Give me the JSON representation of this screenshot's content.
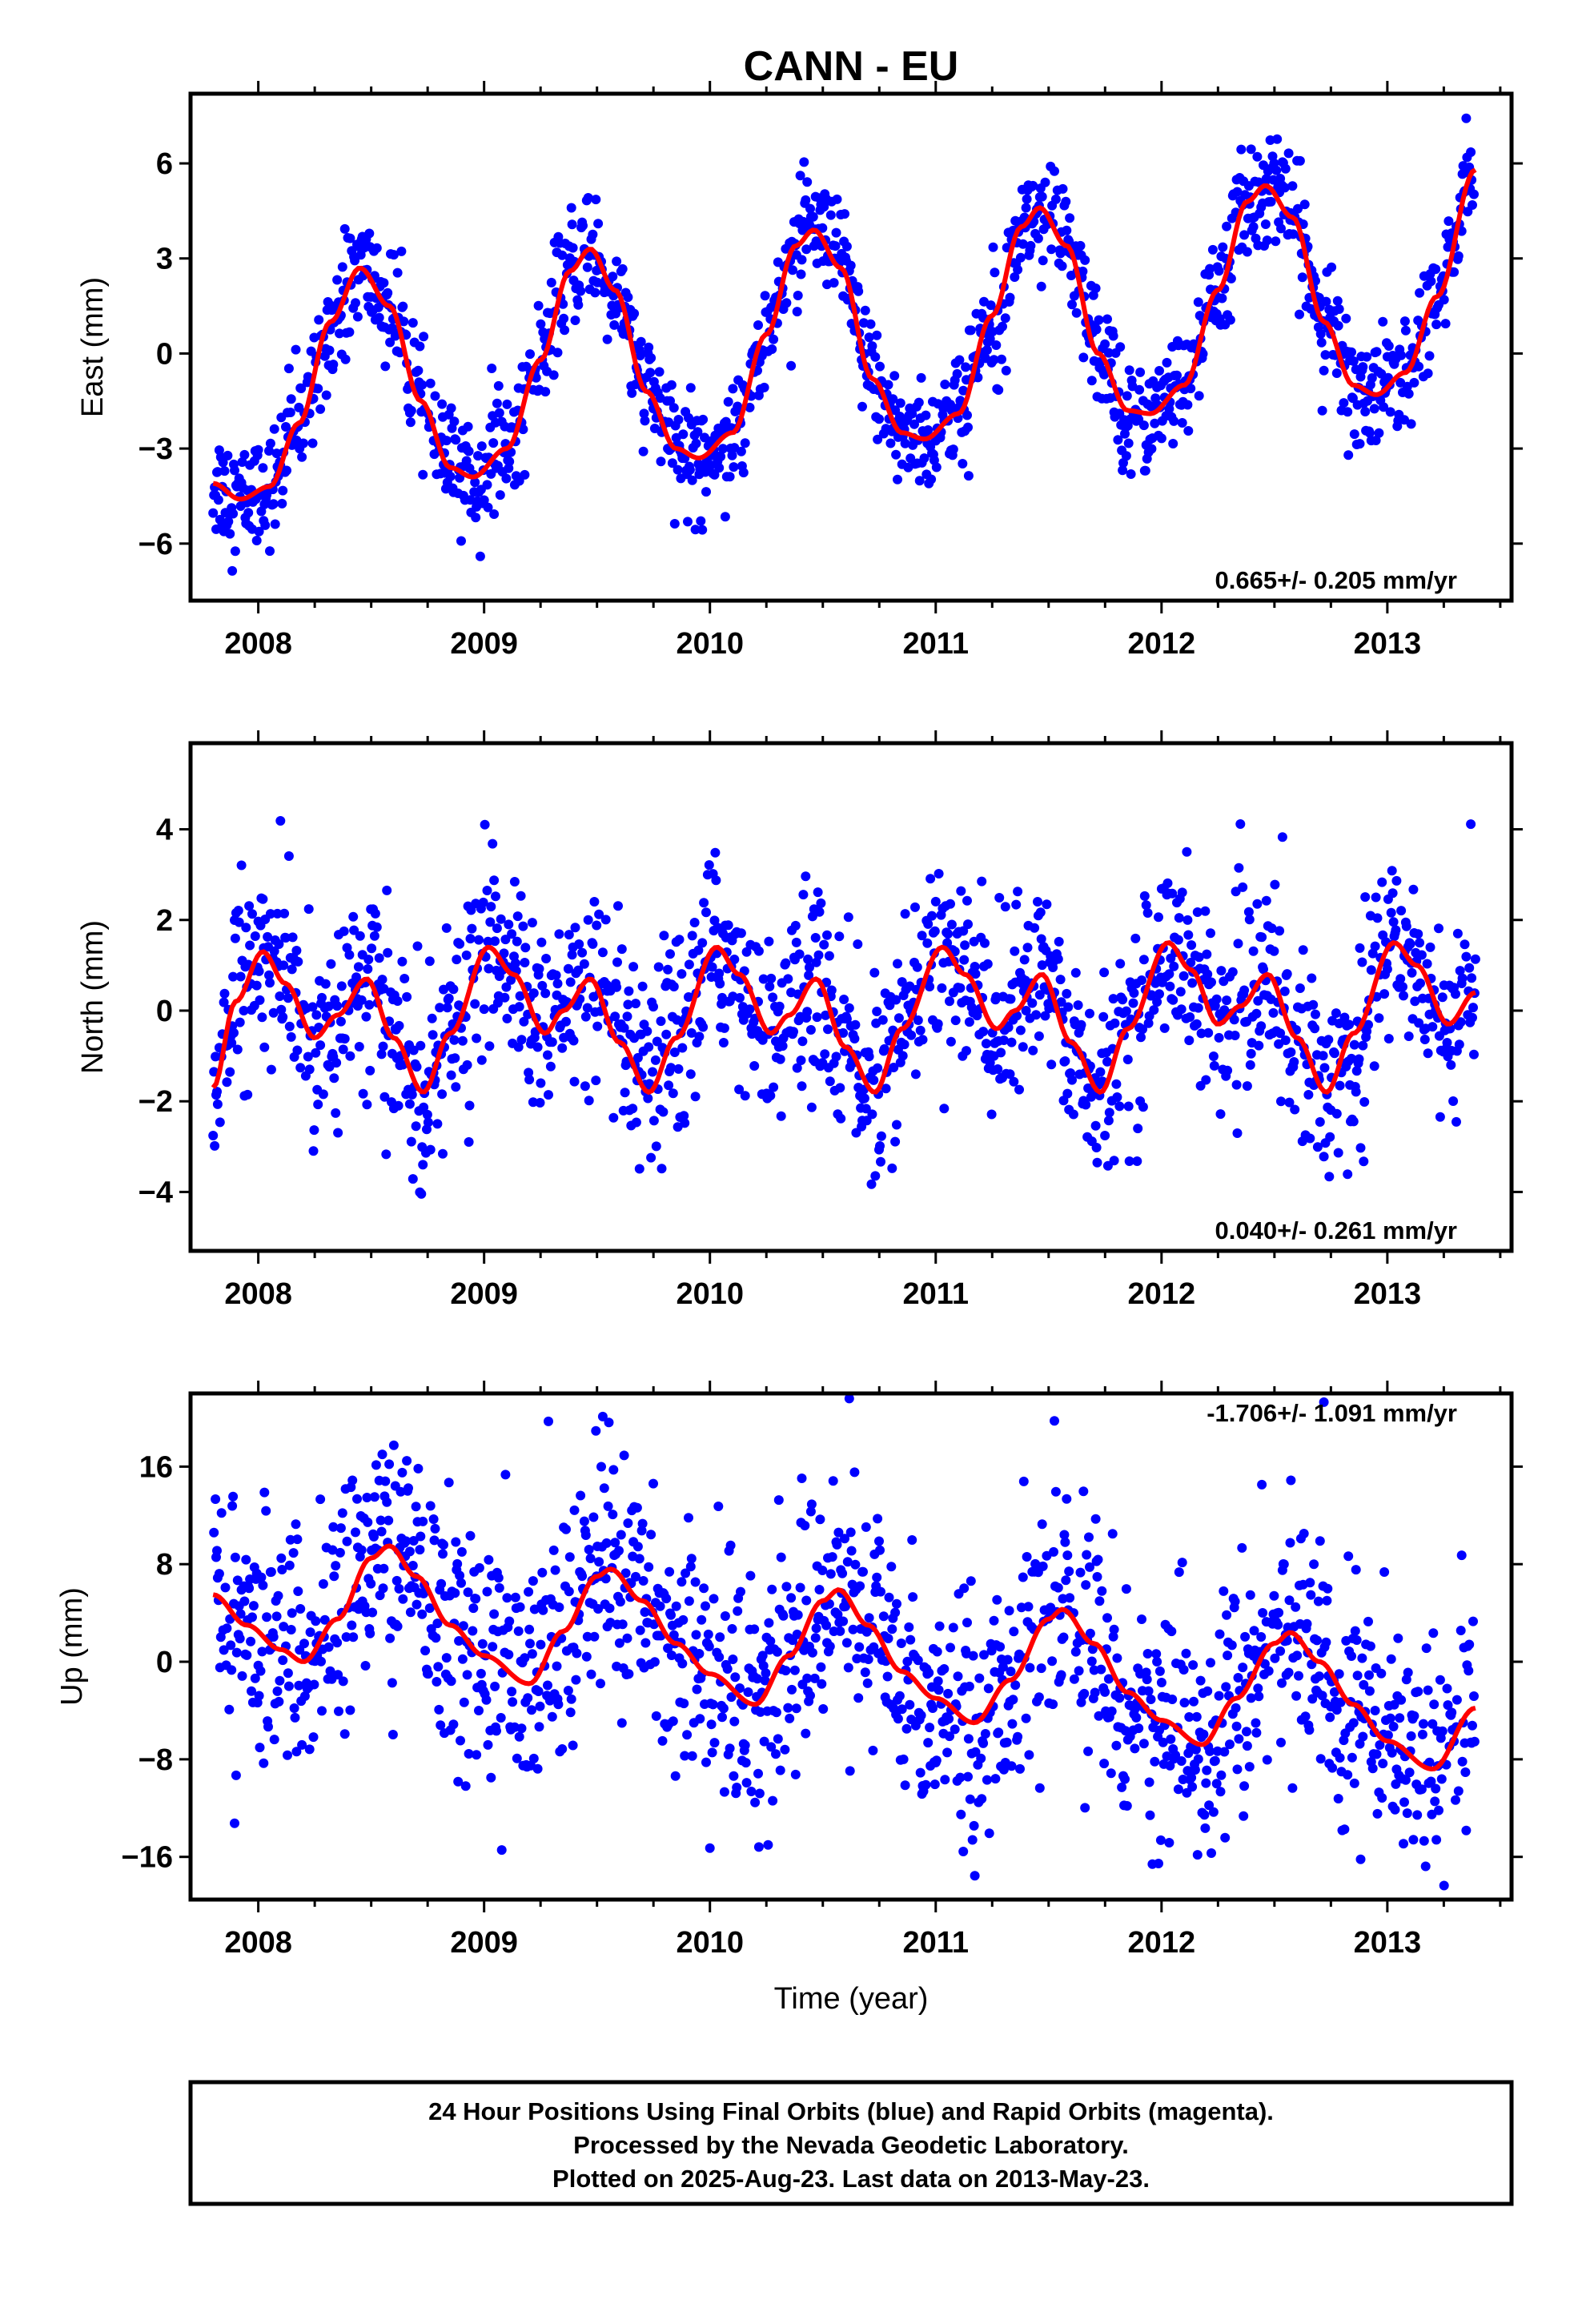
{
  "title": "CANN - EU",
  "xlabel": "Time (year)",
  "footer": {
    "line1": "24 Hour Positions Using Final Orbits (blue) and Rapid Orbits (magenta).",
    "line2": "Processed by the Nevada Geodetic Laboratory.",
    "line3": "Plotted on 2025-Aug-23. Last data on 2013-May-23."
  },
  "colors": {
    "points": "#0000ff",
    "fit": "#ff0000",
    "axes": "#000000"
  },
  "chart_data": [
    {
      "type": "scatter",
      "ylabel": "East (mm)",
      "rate_label": "0.665+/- 0.205 mm/yr",
      "xlim": [
        2007.7,
        2013.55
      ],
      "ylim": [
        -7.8,
        8.2
      ],
      "yticks": [
        -6,
        -3,
        0,
        3,
        6
      ],
      "ytick_labels": [
        "−6",
        "−3",
        "0",
        "3",
        "6"
      ],
      "xticks": [
        2008,
        2009,
        2010,
        2011,
        2012,
        2013
      ],
      "xtick_labels": [
        "2008",
        "2009",
        "2010",
        "2011",
        "2012",
        "2013"
      ],
      "x_start": 2007.8,
      "x_end": 2013.39,
      "fit_points": [
        [
          2007.8,
          -4.1
        ],
        [
          2007.92,
          -4.6
        ],
        [
          2008.05,
          -4.2
        ],
        [
          2008.18,
          -2.2
        ],
        [
          2008.32,
          1.0
        ],
        [
          2008.45,
          2.7
        ],
        [
          2008.58,
          1.5
        ],
        [
          2008.72,
          -1.5
        ],
        [
          2008.85,
          -3.6
        ],
        [
          2008.95,
          -3.9
        ],
        [
          2009.1,
          -3.0
        ],
        [
          2009.25,
          -0.2
        ],
        [
          2009.38,
          2.6
        ],
        [
          2009.47,
          3.3
        ],
        [
          2009.58,
          2.0
        ],
        [
          2009.72,
          -1.2
        ],
        [
          2009.85,
          -3.0
        ],
        [
          2009.95,
          -3.3
        ],
        [
          2010.1,
          -2.5
        ],
        [
          2010.25,
          0.6
        ],
        [
          2010.38,
          3.4
        ],
        [
          2010.46,
          3.9
        ],
        [
          2010.58,
          2.7
        ],
        [
          2010.72,
          -0.8
        ],
        [
          2010.85,
          -2.5
        ],
        [
          2010.95,
          -2.7
        ],
        [
          2011.1,
          -1.9
        ],
        [
          2011.25,
          1.2
        ],
        [
          2011.38,
          4.0
        ],
        [
          2011.46,
          4.6
        ],
        [
          2011.58,
          3.4
        ],
        [
          2011.72,
          0.0
        ],
        [
          2011.85,
          -1.8
        ],
        [
          2011.95,
          -1.9
        ],
        [
          2012.1,
          -1.0
        ],
        [
          2012.25,
          2.0
        ],
        [
          2012.38,
          4.8
        ],
        [
          2012.46,
          5.3
        ],
        [
          2012.58,
          4.3
        ],
        [
          2012.72,
          1.0
        ],
        [
          2012.85,
          -1.0
        ],
        [
          2012.95,
          -1.3
        ],
        [
          2013.08,
          -0.6
        ],
        [
          2013.22,
          1.8
        ],
        [
          2013.39,
          5.8
        ]
      ],
      "scatter_sigma": 0.9
    },
    {
      "type": "scatter",
      "ylabel": "North (mm)",
      "rate_label": "0.040+/- 0.261 mm/yr",
      "xlim": [
        2007.7,
        2013.55
      ],
      "ylim": [
        -5.3,
        5.9
      ],
      "yticks": [
        -4,
        -2,
        0,
        2,
        4
      ],
      "ytick_labels": [
        "−4",
        "−2",
        "0",
        "2",
        "4"
      ],
      "xticks": [
        2008,
        2009,
        2010,
        2011,
        2012,
        2013
      ],
      "xtick_labels": [
        "2008",
        "2009",
        "2010",
        "2011",
        "2012",
        "2013"
      ],
      "x_start": 2007.8,
      "x_end": 2013.39,
      "fit_points": [
        [
          2007.8,
          -1.7
        ],
        [
          2007.9,
          0.2
        ],
        [
          2008.02,
          1.3
        ],
        [
          2008.12,
          0.6
        ],
        [
          2008.25,
          -0.6
        ],
        [
          2008.35,
          -0.1
        ],
        [
          2008.48,
          0.7
        ],
        [
          2008.6,
          -0.6
        ],
        [
          2008.73,
          -1.8
        ],
        [
          2008.85,
          -0.5
        ],
        [
          2009.02,
          1.4
        ],
        [
          2009.13,
          0.8
        ],
        [
          2009.27,
          -0.5
        ],
        [
          2009.35,
          0.0
        ],
        [
          2009.47,
          0.7
        ],
        [
          2009.6,
          -0.7
        ],
        [
          2009.73,
          -1.8
        ],
        [
          2009.85,
          -0.6
        ],
        [
          2010.03,
          1.4
        ],
        [
          2010.13,
          0.8
        ],
        [
          2010.27,
          -0.5
        ],
        [
          2010.35,
          -0.1
        ],
        [
          2010.47,
          0.7
        ],
        [
          2010.6,
          -0.8
        ],
        [
          2010.73,
          -1.8
        ],
        [
          2010.85,
          -0.4
        ],
        [
          2011.03,
          1.4
        ],
        [
          2011.13,
          0.8
        ],
        [
          2011.27,
          -0.4
        ],
        [
          2011.35,
          0.0
        ],
        [
          2011.47,
          0.8
        ],
        [
          2011.6,
          -0.7
        ],
        [
          2011.73,
          -1.8
        ],
        [
          2011.85,
          -0.4
        ],
        [
          2012.03,
          1.5
        ],
        [
          2012.13,
          0.9
        ],
        [
          2012.25,
          -0.3
        ],
        [
          2012.35,
          0.1
        ],
        [
          2012.47,
          0.8
        ],
        [
          2012.6,
          -0.6
        ],
        [
          2012.73,
          -1.8
        ],
        [
          2012.85,
          -0.5
        ],
        [
          2013.03,
          1.5
        ],
        [
          2013.13,
          1.0
        ],
        [
          2013.27,
          -0.3
        ],
        [
          2013.39,
          0.4
        ]
      ],
      "scatter_sigma": 1.05
    },
    {
      "type": "scatter",
      "ylabel": "Up (mm)",
      "rate_label": "-1.706+/- 1.091 mm/yr",
      "xlim": [
        2007.7,
        2013.55
      ],
      "ylim": [
        -19.5,
        22.0
      ],
      "yticks": [
        -16,
        -8,
        0,
        8,
        16
      ],
      "ytick_labels": [
        "−16",
        "−8",
        "0",
        "8",
        "16"
      ],
      "xticks": [
        2008,
        2009,
        2010,
        2011,
        2012,
        2013
      ],
      "xtick_labels": [
        "2008",
        "2009",
        "2010",
        "2011",
        "2012",
        "2013"
      ],
      "x_start": 2007.8,
      "x_end": 2013.39,
      "fit_points": [
        [
          2007.8,
          5.5
        ],
        [
          2007.95,
          3.0
        ],
        [
          2008.1,
          1.0
        ],
        [
          2008.2,
          0.0
        ],
        [
          2008.35,
          3.5
        ],
        [
          2008.5,
          8.5
        ],
        [
          2008.58,
          9.5
        ],
        [
          2008.7,
          7.0
        ],
        [
          2008.85,
          3.0
        ],
        [
          2009.0,
          0.5
        ],
        [
          2009.2,
          -1.8
        ],
        [
          2009.35,
          2.5
        ],
        [
          2009.5,
          7.0
        ],
        [
          2009.56,
          7.6
        ],
        [
          2009.7,
          5.0
        ],
        [
          2009.85,
          1.5
        ],
        [
          2010.0,
          -1.0
        ],
        [
          2010.2,
          -3.5
        ],
        [
          2010.35,
          0.5
        ],
        [
          2010.5,
          5.0
        ],
        [
          2010.57,
          5.9
        ],
        [
          2010.7,
          3.0
        ],
        [
          2010.85,
          -0.8
        ],
        [
          2011.0,
          -3.0
        ],
        [
          2011.17,
          -5.0
        ],
        [
          2011.33,
          -1.5
        ],
        [
          2011.5,
          3.5
        ],
        [
          2011.56,
          4.3
        ],
        [
          2011.7,
          1.5
        ],
        [
          2011.85,
          -2.5
        ],
        [
          2012.0,
          -4.8
        ],
        [
          2012.18,
          -6.8
        ],
        [
          2012.33,
          -3.0
        ],
        [
          2012.5,
          1.5
        ],
        [
          2012.57,
          2.4
        ],
        [
          2012.7,
          0.0
        ],
        [
          2012.85,
          -3.5
        ],
        [
          2013.0,
          -6.5
        ],
        [
          2013.2,
          -8.8
        ],
        [
          2013.39,
          -3.8
        ]
      ],
      "scatter_sigma": 5.0
    }
  ]
}
